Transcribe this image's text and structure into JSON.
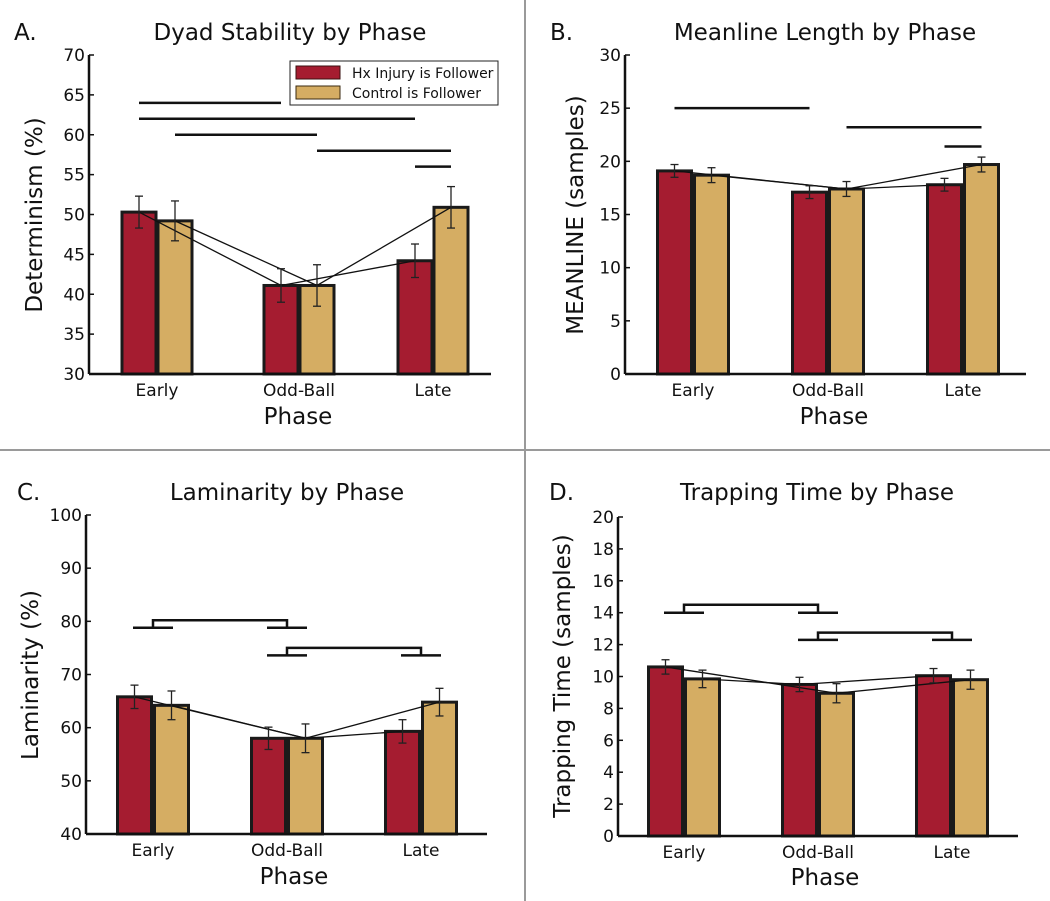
{
  "figure": {
    "colors": {
      "series_hx": "#A51C30",
      "series_control": "#D5AD63",
      "axis": "#111111",
      "divider": "#9a9a9a"
    }
  },
  "chart_data": [
    {
      "id": "A",
      "type": "bar",
      "panel_letter": "A.",
      "title": "Dyad Stability by Phase",
      "xlabel": "Phase",
      "ylabel": "Determinism (%)",
      "ylim": [
        30,
        70
      ],
      "yticks": [
        30,
        35,
        40,
        45,
        50,
        55,
        60,
        65,
        70
      ],
      "categories": [
        "Early",
        "Odd-Ball",
        "Late"
      ],
      "legend": {
        "placement": "top-right",
        "entries": [
          "Hx Injury is Follower",
          "Control is Follower"
        ]
      },
      "series": [
        {
          "name": "Hx Injury is Follower",
          "values": [
            50.3,
            41.1,
            44.2
          ],
          "errors": [
            2.0,
            2.1,
            2.1
          ]
        },
        {
          "name": "Control is Follower",
          "values": [
            49.2,
            41.1,
            50.9
          ],
          "errors": [
            2.5,
            2.6,
            2.6
          ]
        }
      ],
      "connectors": [
        {
          "from": [
            0,
            0
          ],
          "to": [
            1,
            0
          ]
        },
        {
          "from": [
            1,
            0
          ],
          "to": [
            2,
            0
          ]
        },
        {
          "from": [
            0,
            1
          ],
          "to": [
            1,
            1
          ]
        },
        {
          "from": [
            1,
            1
          ],
          "to": [
            2,
            1
          ]
        }
      ],
      "significance": {
        "style": "line",
        "bars": [
          {
            "y": 64,
            "from": [
              0,
              0
            ],
            "to": [
              1,
              0
            ]
          },
          {
            "y": 62,
            "from": [
              0,
              0
            ],
            "to": [
              2,
              0
            ]
          },
          {
            "y": 60,
            "from": [
              0,
              1
            ],
            "to": [
              1,
              1
            ]
          },
          {
            "y": 58,
            "from": [
              1,
              1
            ],
            "to": [
              2,
              1
            ]
          },
          {
            "y": 56,
            "from": [
              2,
              0
            ],
            "to": [
              2,
              1
            ]
          }
        ]
      }
    },
    {
      "id": "B",
      "type": "bar",
      "panel_letter": "B.",
      "title": "Meanline Length by Phase",
      "xlabel": "Phase",
      "ylabel": "MEANLINE (samples)",
      "ylim": [
        0,
        30
      ],
      "yticks": [
        0,
        5,
        10,
        15,
        20,
        25,
        30
      ],
      "categories": [
        "Early",
        "Odd-Ball",
        "Late"
      ],
      "series": [
        {
          "name": "Hx Injury is Follower",
          "values": [
            19.1,
            17.1,
            17.8
          ],
          "errors": [
            0.6,
            0.6,
            0.6
          ]
        },
        {
          "name": "Control is Follower",
          "values": [
            18.7,
            17.4,
            19.7
          ],
          "errors": [
            0.7,
            0.7,
            0.7
          ]
        }
      ],
      "connectors": [
        {
          "from": [
            0,
            0
          ],
          "to": [
            1,
            1
          ]
        },
        {
          "from": [
            1,
            1
          ],
          "to": [
            2,
            1
          ]
        },
        {
          "from": [
            0,
            1
          ],
          "to": [
            1,
            1
          ]
        },
        {
          "from": [
            1,
            1
          ],
          "to": [
            2,
            0
          ]
        }
      ],
      "significance": {
        "style": "line",
        "bars": [
          {
            "y": 25,
            "from": [
              0,
              0
            ],
            "to": [
              1,
              0
            ]
          },
          {
            "y": 23.2,
            "from": [
              1,
              1
            ],
            "to": [
              2,
              1
            ]
          },
          {
            "y": 21.4,
            "from": [
              2,
              0
            ],
            "to": [
              2,
              1
            ]
          }
        ]
      }
    },
    {
      "id": "C",
      "type": "bar",
      "panel_letter": "C.",
      "title": "Laminarity by Phase",
      "xlabel": "Phase",
      "ylabel": "Laminarity (%)",
      "ylim": [
        40,
        100
      ],
      "yticks": [
        40,
        50,
        60,
        70,
        80,
        90,
        100
      ],
      "categories": [
        "Early",
        "Odd-Ball",
        "Late"
      ],
      "series": [
        {
          "name": "Hx Injury is Follower",
          "values": [
            65.8,
            58.0,
            59.3
          ],
          "errors": [
            2.2,
            2.1,
            2.2
          ]
        },
        {
          "name": "Control is Follower",
          "values": [
            64.2,
            58.0,
            64.8
          ],
          "errors": [
            2.7,
            2.7,
            2.6
          ]
        }
      ],
      "connectors": [
        {
          "from": [
            0,
            0
          ],
          "to": [
            1,
            1
          ]
        },
        {
          "from": [
            1,
            1
          ],
          "to": [
            2,
            1
          ]
        },
        {
          "from": [
            0,
            1
          ],
          "to": [
            1,
            1
          ]
        },
        {
          "from": [
            1,
            1
          ],
          "to": [
            2,
            0
          ]
        }
      ],
      "significance": {
        "style": "bracket",
        "bars": [
          {
            "y": 80.2,
            "legs_y": 78.8,
            "from_cat": 0,
            "to_cat": 1
          },
          {
            "y": 75.0,
            "legs_y": 73.6,
            "from_cat": 1,
            "to_cat": 2
          }
        ]
      }
    },
    {
      "id": "D",
      "type": "bar",
      "panel_letter": "D.",
      "title": "Trapping Time by Phase",
      "xlabel": "Phase",
      "ylabel": "Trapping Time (samples)",
      "ylim": [
        0,
        20
      ],
      "yticks": [
        0,
        2,
        4,
        6,
        8,
        10,
        12,
        14,
        16,
        18,
        20
      ],
      "categories": [
        "Early",
        "Odd-Ball",
        "Late"
      ],
      "series": [
        {
          "name": "Hx Injury is Follower",
          "values": [
            10.6,
            9.5,
            10.05
          ],
          "errors": [
            0.45,
            0.45,
            0.45
          ]
        },
        {
          "name": "Control is Follower",
          "values": [
            9.85,
            8.95,
            9.8
          ],
          "errors": [
            0.55,
            0.6,
            0.6
          ]
        }
      ],
      "connectors": [
        {
          "from": [
            0,
            0
          ],
          "to": [
            1,
            1
          ]
        },
        {
          "from": [
            1,
            0
          ],
          "to": [
            2,
            0
          ]
        },
        {
          "from": [
            0,
            1
          ],
          "to": [
            1,
            0
          ]
        },
        {
          "from": [
            1,
            1
          ],
          "to": [
            2,
            1
          ]
        }
      ],
      "significance": {
        "style": "bracket",
        "bars": [
          {
            "y": 14.5,
            "legs_y": 14.0,
            "from_cat": 0,
            "to_cat": 1
          },
          {
            "y": 12.75,
            "legs_y": 12.3,
            "from_cat": 1,
            "to_cat": 2
          }
        ]
      }
    }
  ]
}
